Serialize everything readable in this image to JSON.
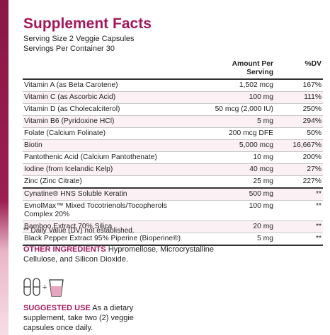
{
  "header": {
    "title": "Supplement Facts",
    "serving_size": "Serving Size  2 Veggie Capsules",
    "servings_per_container": "Servings Per Container  30"
  },
  "table": {
    "columns": [
      "Amount Per Serving",
      "%DV"
    ],
    "rows": [
      [
        "Vitamin A (as Beta Carotene)",
        "1,502 mcg",
        "167%"
      ],
      [
        "Vitamin C (as Ascorbic Acid)",
        "100 mg",
        "111%"
      ],
      [
        "Vitamin D (as Cholecalciterol)",
        "50 mcg (2,000 IU)",
        "250%"
      ],
      [
        "Vitamin B6 (Pyridoxine HCl)",
        "5 mg",
        "294%"
      ],
      [
        "Folate (Calcium Folinate)",
        "200 mcg DFE",
        "50%"
      ],
      [
        "Biotin",
        "5,000 mcg",
        "16,667%"
      ],
      [
        "Pantothenic Acid (Calcium Pantothenate)",
        "10 mg",
        "200%"
      ],
      [
        "Iodine (from Icelandic Kelp)",
        "40 mcg",
        "27%"
      ],
      [
        "Zinc (Zinc Citrate)",
        "25 mg",
        "227%"
      ],
      [
        "Cynatine® HNS Soluble Keratin",
        "500 mg",
        "**"
      ],
      [
        "EvnolMax™ Mixed Tocotrienols/Tocopherols Complex 20%",
        "100 mg",
        "**"
      ],
      [
        "Bamboo Extract 70% Silica",
        "20 mg",
        "**"
      ],
      [
        "Black Pepper Extract 95% Piperine (Bioperine®)",
        "5 mg",
        "**"
      ]
    ],
    "footnote": "** Daily Value (DV) not established."
  },
  "other_ingredients": {
    "label": "OTHER INGREDIENTS",
    "text": "Hypromellose, Microcrystalline Cellulose, and Silicon Dioxide."
  },
  "suggested_use": {
    "label": "SUGGESTED USE",
    "text": "As a dietary supplement, take two (2) veggie capsules once daily."
  }
}
